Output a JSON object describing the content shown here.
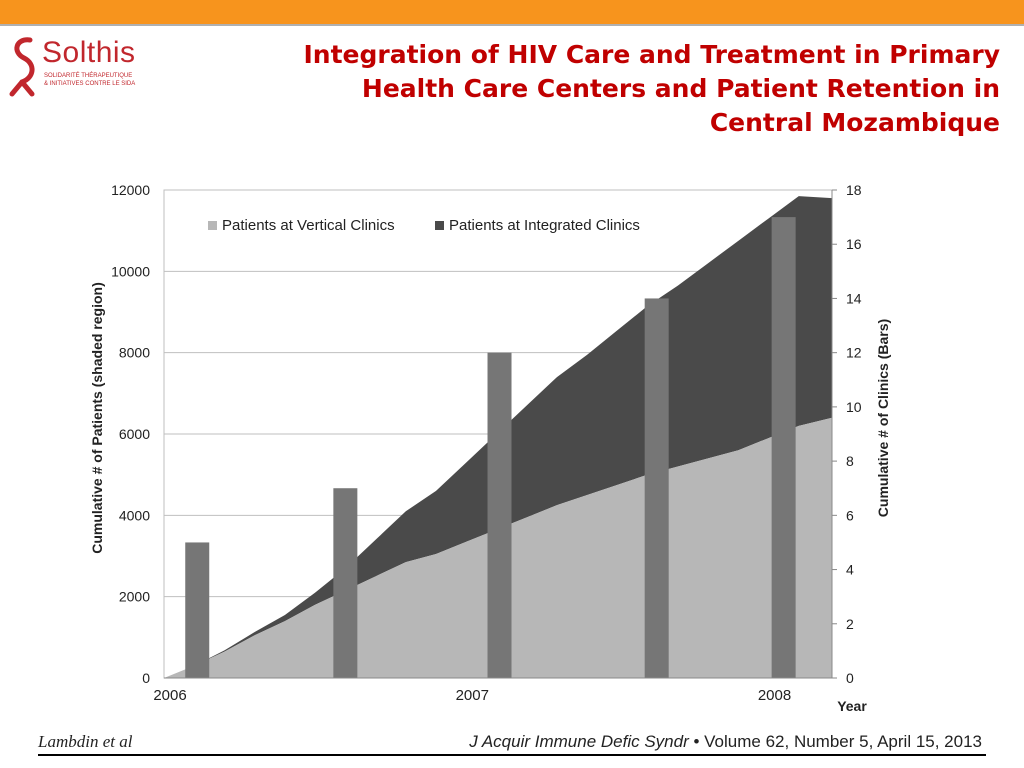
{
  "header": {
    "bar_color": "#f7941d"
  },
  "logo": {
    "name": "Solthis",
    "tagline_1": "SOLIDARITÉ THÉRAPEUTIQUE",
    "tagline_2": "& INITIATIVES CONTRE LE SIDA",
    "color": "#c1272d"
  },
  "slide_title": {
    "line1": "Integration of HIV Care and Treatment in Primary",
    "line2": "Health Care Centers and Patient Retention in",
    "line3": "Central Mozambique",
    "color": "#c00000"
  },
  "chart_data": {
    "type": "area",
    "ylabel": "Cumulative # of Patients (shaded region)",
    "y2label": "Cumulative # of Clinics (Bars)",
    "xlabel": "Year",
    "ylim": [
      0,
      12000
    ],
    "y2lim": [
      0,
      18
    ],
    "yticks": [
      "0",
      "2000",
      "4000",
      "6000",
      "8000",
      "10000",
      "12000"
    ],
    "y2ticks": [
      "0",
      "2",
      "4",
      "6",
      "8",
      "10",
      "12",
      "14",
      "16",
      "18"
    ],
    "xlim": [
      2006.0,
      2008.21
    ],
    "xticks": [
      {
        "x": 2006.0,
        "label": "2006"
      },
      {
        "x": 2007.0,
        "label": "2007"
      },
      {
        "x": 2008.0,
        "label": "2008"
      }
    ],
    "legend": {
      "placement": "top-left",
      "items": [
        "Patients at Vertical Clinics",
        "Patients at Integrated Clinics"
      ]
    },
    "grid": true,
    "series": [
      {
        "name": "Patients at Vertical Clinics",
        "color": "#b7b7b7",
        "x": [
          2006.0,
          2006.1,
          2006.2,
          2006.3,
          2006.4,
          2006.5,
          2006.6,
          2006.7,
          2006.8,
          2006.9,
          2007.0,
          2007.1,
          2007.2,
          2007.3,
          2007.4,
          2007.5,
          2007.6,
          2007.7,
          2007.8,
          2007.9,
          2008.0,
          2008.1,
          2008.21
        ],
        "values": [
          0,
          300,
          650,
          1050,
          1400,
          1800,
          2150,
          2500,
          2850,
          3050,
          3350,
          3650,
          3950,
          4250,
          4500,
          4750,
          5000,
          5200,
          5400,
          5600,
          5900,
          6200,
          6400
        ]
      },
      {
        "name": "Patients at Integrated Clinics",
        "color": "#4a4a4a",
        "x": [
          2006.0,
          2006.1,
          2006.2,
          2006.3,
          2006.4,
          2006.5,
          2006.6,
          2006.7,
          2006.8,
          2006.9,
          2007.0,
          2007.1,
          2007.2,
          2007.3,
          2007.4,
          2007.5,
          2007.6,
          2007.7,
          2007.8,
          2007.9,
          2008.0,
          2008.1,
          2008.21
        ],
        "values": [
          0,
          0,
          30,
          80,
          150,
          300,
          550,
          900,
          1250,
          1550,
          1950,
          2350,
          2750,
          3150,
          3450,
          3800,
          4150,
          4450,
          4800,
          5150,
          5400,
          5650,
          5400
        ]
      }
    ],
    "bars": {
      "name": "Cumulative # of Clinics",
      "color": "#767676",
      "x": [
        2006.11,
        2006.6,
        2007.11,
        2007.63,
        2008.05
      ],
      "values": [
        5,
        7,
        12,
        14,
        17
      ]
    }
  },
  "footer": {
    "author": "Lambdin et al",
    "journal": "J Acquir Immune Defic Syndr",
    "bullet": "•",
    "citation": "Volume 62, Number 5, April 15, 2013"
  }
}
